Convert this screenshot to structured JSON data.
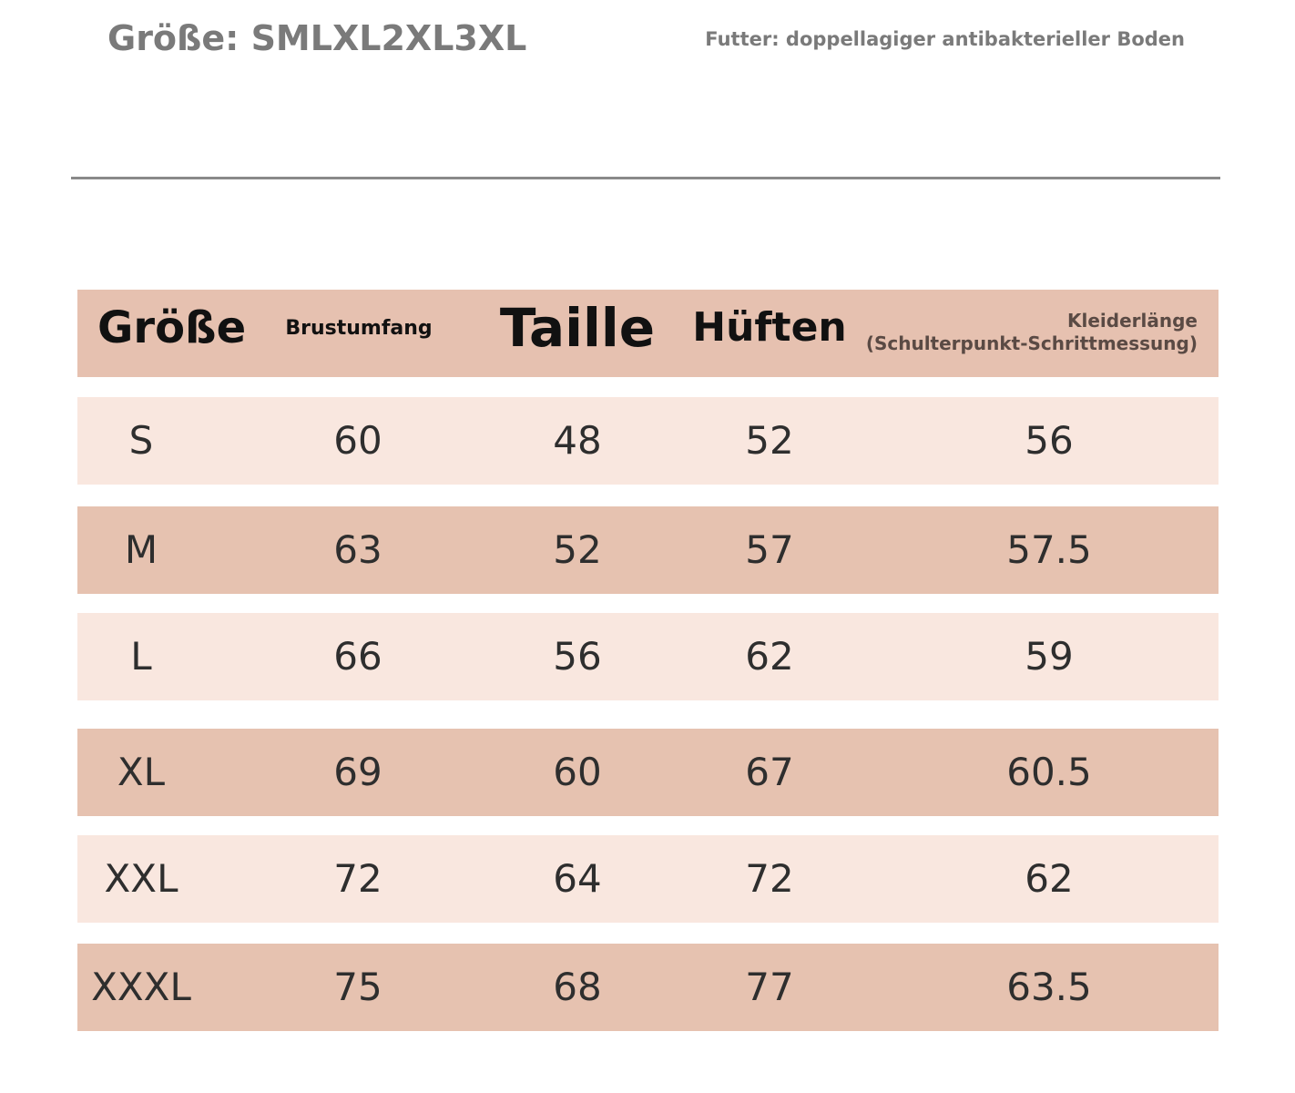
{
  "header": {
    "size_text": "Größe: SMLXL2XL3XL",
    "lining": "Futter: doppellagiger antibakterieller Boden"
  },
  "table": {
    "columns": [
      "Größe",
      "Brustumfang",
      "Taille",
      "Hüften",
      "Kleiderlänge"
    ],
    "column_note": "(Schulterpunkt-Schrittmessung)",
    "rows": [
      [
        "S",
        60,
        48,
        52,
        56
      ],
      [
        "M",
        63,
        52,
        57,
        57.5
      ],
      [
        "L",
        66,
        56,
        62,
        59
      ],
      [
        "XL",
        69,
        60,
        67,
        60.5
      ],
      [
        "XXL",
        72,
        64,
        72,
        62
      ],
      [
        "XXXL",
        75,
        68,
        77,
        63.5
      ]
    ]
  }
}
